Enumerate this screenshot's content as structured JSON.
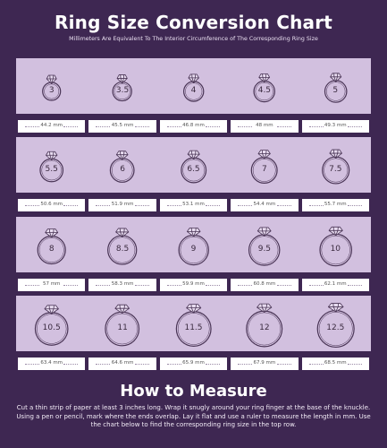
{
  "header": {
    "title": "Ring Size Conversion Chart",
    "subtitle": "Millimeters Are Equivalent To The Interior Circumference of The Corresponding Ring Size"
  },
  "colors": {
    "background": "#3e2752",
    "band": "#d2c0df",
    "ring_stroke": "#4a3556",
    "mm_box": "#ffffff"
  },
  "rows": [
    {
      "sizes": [
        "3",
        "3.5",
        "4",
        "4.5",
        "5"
      ],
      "mm": [
        "44.2 mm",
        "45.5 mm",
        "46.8 mm",
        "48 mm",
        "49.3 mm"
      ]
    },
    {
      "sizes": [
        "5.5",
        "6",
        "6.5",
        "7",
        "7.5"
      ],
      "mm": [
        "50.6 mm",
        "51.9 mm",
        "53.1 mm",
        "54.4 mm",
        "55.7 mm"
      ]
    },
    {
      "sizes": [
        "8",
        "8.5",
        "9",
        "9.5",
        "10"
      ],
      "mm": [
        "57 mm",
        "58.3 mm",
        "59.9 mm",
        "60.8 mm",
        "62.1 mm"
      ]
    },
    {
      "sizes": [
        "10.5",
        "11",
        "11.5",
        "12",
        "12.5"
      ],
      "mm": [
        "63.4 mm",
        "64.6 mm",
        "65.9 mm",
        "67.9 mm",
        "68.5 mm"
      ]
    }
  ],
  "how_to": {
    "title": "How to Measure",
    "text": "Cut a thin strip of paper at least 3 inches long. Wrap it snugly around your ring finger at the base of the knuckle. Using a pen or pencil, mark where the ends overlap. Lay it flat and use a ruler to measure the length in mm. Use the chart below to find the corresponding ring size in the top row."
  },
  "icons": {
    "ring": "diamond-ring-icon"
  }
}
